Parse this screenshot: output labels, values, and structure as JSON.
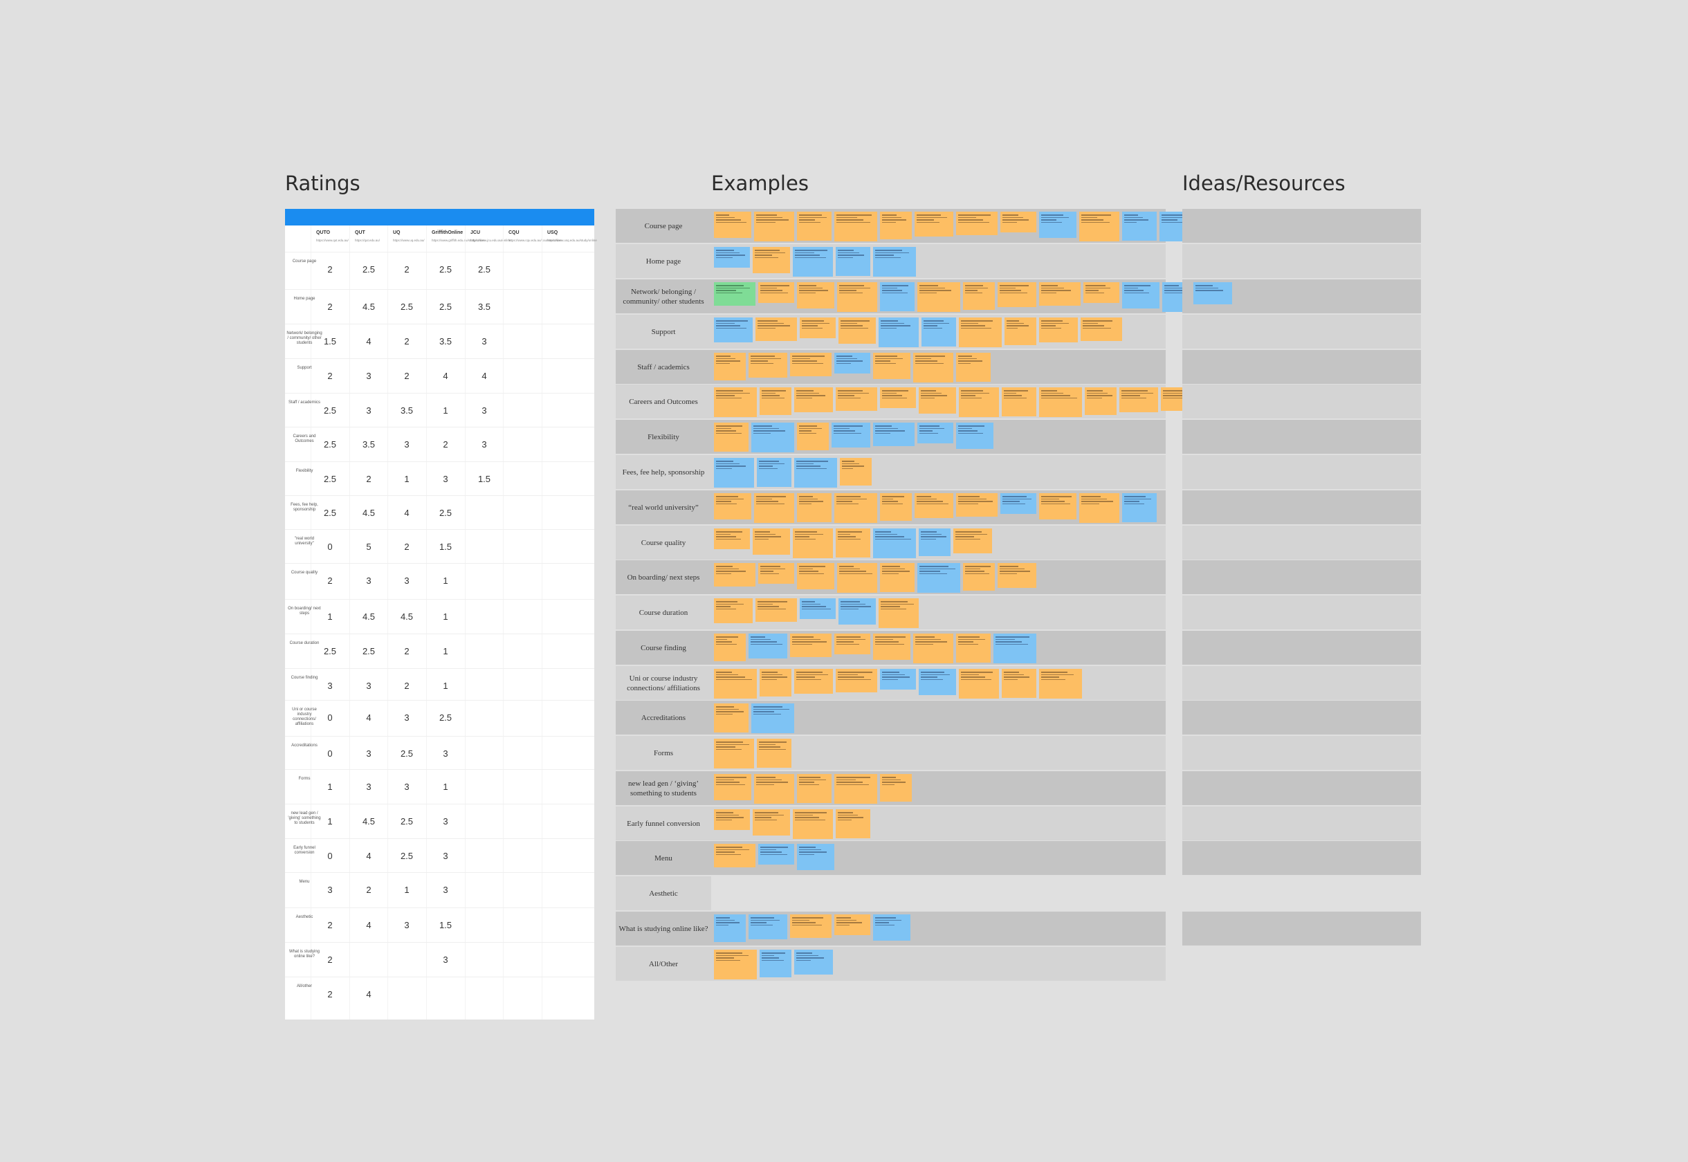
{
  "sections": {
    "ratings": "Ratings",
    "examples": "Examples",
    "ideas": "Ideas/Resources"
  },
  "ratings_table": {
    "columns": [
      {
        "name": "QUTO",
        "url": "https://www.qut.edu.au/"
      },
      {
        "name": "QUT",
        "url": "https://qut.edu.au/"
      },
      {
        "name": "UQ",
        "url": "https://www.uq.edu.au/"
      },
      {
        "name": "GriffithOnline",
        "url": "https://www.griffith.edu.au/study/online"
      },
      {
        "name": "JCU",
        "url": "https://www.jcu.edu.au/online"
      },
      {
        "name": "CQU",
        "url": "https://www.cqu.edu.au/courses/online"
      },
      {
        "name": "USQ",
        "url": "https://www.usq.edu.au/study/online"
      }
    ],
    "rows": [
      {
        "label": "Course page",
        "values": [
          "2",
          "2.5",
          "2",
          "2.5",
          "2.5",
          "",
          ""
        ]
      },
      {
        "label": "Home page",
        "values": [
          "2",
          "4.5",
          "2.5",
          "2.5",
          "3.5",
          "",
          ""
        ]
      },
      {
        "label": "Network/ belonging / community/ other students",
        "values": [
          "1.5",
          "4",
          "2",
          "3.5",
          "3",
          "",
          ""
        ]
      },
      {
        "label": "Support",
        "values": [
          "2",
          "3",
          "2",
          "4",
          "4",
          "",
          ""
        ]
      },
      {
        "label": "Staff / academics",
        "values": [
          "2.5",
          "3",
          "3.5",
          "1",
          "3",
          "",
          ""
        ]
      },
      {
        "label": "Careers and Outcomes",
        "values": [
          "2.5",
          "3.5",
          "3",
          "2",
          "3",
          "",
          ""
        ]
      },
      {
        "label": "Flexibility",
        "values": [
          "2.5",
          "2",
          "1",
          "3",
          "1.5",
          "",
          ""
        ]
      },
      {
        "label": "Fees, fee help, sponsorship",
        "values": [
          "2.5",
          "4.5",
          "4",
          "2.5",
          "",
          "",
          ""
        ]
      },
      {
        "label": "\"real world university\"",
        "values": [
          "0",
          "5",
          "2",
          "1.5",
          "",
          "",
          ""
        ]
      },
      {
        "label": "Course quality",
        "values": [
          "2",
          "3",
          "3",
          "1",
          "",
          "",
          ""
        ]
      },
      {
        "label": "On boarding/ next steps",
        "values": [
          "1",
          "4.5",
          "4.5",
          "1",
          "",
          "",
          ""
        ]
      },
      {
        "label": "Course duration",
        "values": [
          "2.5",
          "2.5",
          "2",
          "1",
          "",
          "",
          ""
        ]
      },
      {
        "label": "Course finding",
        "values": [
          "3",
          "3",
          "2",
          "1",
          "",
          "",
          ""
        ]
      },
      {
        "label": "Uni or course industry connections/ affiliations",
        "values": [
          "0",
          "4",
          "3",
          "2.5",
          "",
          "",
          ""
        ]
      },
      {
        "label": "Accreditations",
        "values": [
          "0",
          "3",
          "2.5",
          "3",
          "",
          "",
          ""
        ]
      },
      {
        "label": "Forms",
        "values": [
          "1",
          "3",
          "3",
          "1",
          "",
          "",
          ""
        ]
      },
      {
        "label": "new lead gen / 'giving' something to students",
        "values": [
          "1",
          "4.5",
          "2.5",
          "3",
          "",
          "",
          ""
        ]
      },
      {
        "label": "Early funnel conversion",
        "values": [
          "0",
          "4",
          "2.5",
          "3",
          "",
          "",
          ""
        ]
      },
      {
        "label": "Menu",
        "values": [
          "3",
          "2",
          "1",
          "3",
          "",
          "",
          ""
        ]
      },
      {
        "label": "Aesthetic",
        "values": [
          "2",
          "4",
          "3",
          "1.5",
          "",
          "",
          ""
        ]
      },
      {
        "label": "What is studying online like?",
        "values": [
          "2",
          "",
          "",
          "3",
          "",
          "",
          ""
        ]
      },
      {
        "label": "All/other",
        "values": [
          "2",
          "4",
          "",
          "",
          "",
          "",
          ""
        ]
      }
    ]
  },
  "example_rows": [
    {
      "label": "Course page",
      "shade": "#c4c4c4",
      "notes": "oooooooobobboooob"
    },
    {
      "label": "Home page",
      "shade": "#d4d4d4",
      "notes": "bobbb"
    },
    {
      "label": "Network/ belonging / community/ other students",
      "shade": "#c4c4c4",
      "notes": "gooobooooobb"
    },
    {
      "label": "Support",
      "shade": "#d4d4d4",
      "notes": "booobboooo"
    },
    {
      "label": "Staff / academics",
      "shade": "#c4c4c4",
      "notes": "ooobooo"
    },
    {
      "label": "Careers and Outcomes",
      "shade": "#d4d4d4",
      "notes": "oooooooooooo"
    },
    {
      "label": "Flexibility",
      "shade": "#c4c4c4",
      "notes": "obobbbb"
    },
    {
      "label": "Fees, fee help, sponsorship",
      "shade": "#d4d4d4",
      "notes": "bbbo"
    },
    {
      "label": "“real world university”",
      "shade": "#c4c4c4",
      "notes": "oooooooboob"
    },
    {
      "label": "Course quality",
      "shade": "#d4d4d4",
      "notes": "oooobbo"
    },
    {
      "label": "On boarding/ next steps",
      "shade": "#c4c4c4",
      "notes": "oooooboo"
    },
    {
      "label": "Course duration",
      "shade": "#d4d4d4",
      "notes": "oobbo"
    },
    {
      "label": "Course finding",
      "shade": "#c4c4c4",
      "notes": "obooooob"
    },
    {
      "label": "Uni or course industry connections/ affiliations",
      "shade": "#d4d4d4",
      "notes": "oooobbooo"
    },
    {
      "label": "Accreditations",
      "shade": "#c4c4c4",
      "notes": "ob"
    },
    {
      "label": "Forms",
      "shade": "#d4d4d4",
      "notes": "oo"
    },
    {
      "label": "new lead gen / ‘giving’ something to students",
      "shade": "#c4c4c4",
      "notes": "ooooo"
    },
    {
      "label": "Early funnel conversion",
      "shade": "#d4d4d4",
      "notes": "oooo"
    },
    {
      "label": "Menu",
      "shade": "#c4c4c4",
      "notes": "obb"
    },
    {
      "label": "Aesthetic",
      "shade": "#d4d4d4",
      "notes": ""
    },
    {
      "label": "What is studying online like?",
      "shade": "#c4c4c4",
      "notes": "bboob"
    },
    {
      "label": "All/Other",
      "shade": "#d4d4d4",
      "notes": "obb"
    }
  ],
  "ideas_rows": [
    {
      "shade": "#c4c4c4",
      "notes": ""
    },
    {
      "shade": "#d4d4d4",
      "notes": ""
    },
    {
      "shade": "#c4c4c4",
      "notes": "b"
    },
    {
      "shade": "#d4d4d4",
      "notes": ""
    },
    {
      "shade": "#c4c4c4",
      "notes": ""
    },
    {
      "shade": "#d4d4d4",
      "notes": ""
    },
    {
      "shade": "#c4c4c4",
      "notes": ""
    },
    {
      "shade": "#d4d4d4",
      "notes": ""
    },
    {
      "shade": "#c4c4c4",
      "notes": ""
    },
    {
      "shade": "#d4d4d4",
      "notes": ""
    },
    {
      "shade": "#c4c4c4",
      "notes": ""
    },
    {
      "shade": "#d4d4d4",
      "notes": ""
    },
    {
      "shade": "#c4c4c4",
      "notes": ""
    },
    {
      "shade": "#d4d4d4",
      "notes": ""
    },
    {
      "shade": "#c4c4c4",
      "notes": ""
    },
    {
      "shade": "#d4d4d4",
      "notes": ""
    },
    {
      "shade": "#c4c4c4",
      "notes": ""
    },
    {
      "shade": "#d4d4d4",
      "notes": ""
    },
    {
      "shade": "#c4c4c4",
      "notes": ""
    },
    {
      "shade": "#d4d4d4",
      "notes": ""
    },
    {
      "shade": "#c4c4c4",
      "notes": ""
    },
    {
      "shade": "#d4d4d4",
      "notes": ""
    }
  ],
  "colors": {
    "sticky_orange": "#fdbe63",
    "sticky_blue": "#7ec3f4",
    "sticky_green": "#7fdc96",
    "header_blue": "#1a8cf0"
  }
}
